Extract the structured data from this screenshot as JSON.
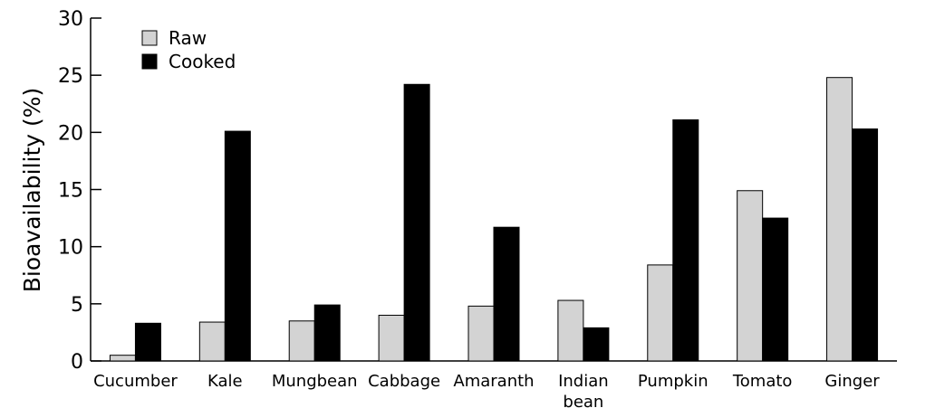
{
  "chart_data": {
    "type": "bar",
    "ylabel": "Bioavailability (%)",
    "xlabel": "",
    "ylim": [
      0,
      30
    ],
    "yticks": [
      0,
      5,
      10,
      15,
      20,
      25,
      30
    ],
    "categories": [
      "Cucumber",
      "Kale",
      "Mungbean",
      "Cabbage",
      "Amaranth",
      "Indian bean",
      "Pumpkin",
      "Tomato",
      "Ginger"
    ],
    "series": [
      {
        "name": "Raw",
        "color": "#d3d3d3",
        "values": [
          0.5,
          3.4,
          3.5,
          4.0,
          4.8,
          5.3,
          8.4,
          14.9,
          24.8
        ]
      },
      {
        "name": "Cooked",
        "color": "#000000",
        "values": [
          3.3,
          20.1,
          4.9,
          24.2,
          11.7,
          2.9,
          21.1,
          12.5,
          20.3
        ]
      }
    ],
    "legend_position": "top-left",
    "grid": false
  }
}
